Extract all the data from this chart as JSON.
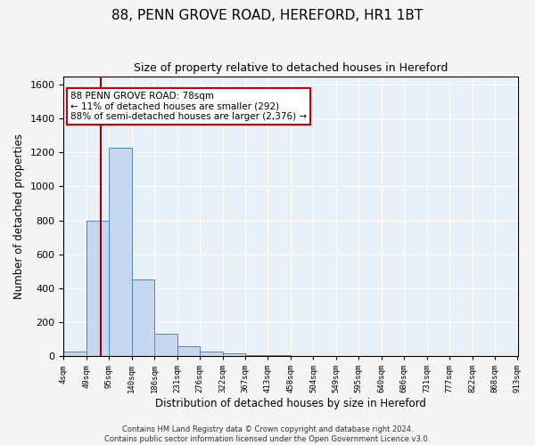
{
  "title": "88, PENN GROVE ROAD, HEREFORD, HR1 1BT",
  "subtitle": "Size of property relative to detached houses in Hereford",
  "xlabel": "Distribution of detached houses by size in Hereford",
  "ylabel": "Number of detached properties",
  "bin_edges": [
    4,
    49,
    95,
    140,
    186,
    231,
    276,
    322,
    367,
    413,
    458,
    504,
    549,
    595,
    640,
    686,
    731,
    777,
    822,
    868,
    913
  ],
  "bin_counts": [
    28,
    800,
    1230,
    450,
    130,
    60,
    28,
    15,
    8,
    5,
    3,
    2,
    1,
    1,
    1,
    1,
    1,
    1,
    1,
    1
  ],
  "bar_facecolor": "#c5d8f0",
  "bar_edgecolor": "#5585c5",
  "background_color": "#e8f0f8",
  "grid_color": "#ffffff",
  "vline_x": 78,
  "vline_color": "#990000",
  "annotation_text": "88 PENN GROVE ROAD: 78sqm\n← 11% of detached houses are smaller (292)\n88% of semi-detached houses are larger (2,376) →",
  "annotation_box_edgecolor": "#cc0000",
  "annotation_box_facecolor": "#ffffff",
  "ylim": [
    0,
    1650
  ],
  "yticks": [
    0,
    200,
    400,
    600,
    800,
    1000,
    1200,
    1400,
    1600
  ],
  "footer": "Contains HM Land Registry data © Crown copyright and database right 2024.\nContains public sector information licensed under the Open Government Licence v3.0.",
  "title_fontsize": 11,
  "subtitle_fontsize": 9,
  "fig_facecolor": "#f5f5f5"
}
